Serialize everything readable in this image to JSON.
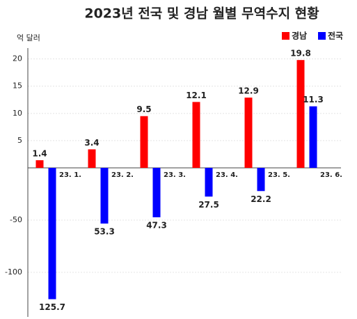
{
  "chart_data": {
    "type": "bar",
    "title": "2023년 전국 및 경남 월별 무역수지 현황",
    "y_label": "억 달러",
    "categories": [
      "23. 1.",
      "23. 2.",
      "23. 3.",
      "23. 4.",
      "23. 5.",
      "23. 6."
    ],
    "series": [
      {
        "name": "경남",
        "color": "#ff0000",
        "values": [
          1.4,
          3.4,
          9.5,
          12.1,
          12.9,
          19.8
        ]
      },
      {
        "name": "전국",
        "color": "#0000ff",
        "values": [
          -125.7,
          -53.3,
          -47.3,
          -27.5,
          -22.2,
          11.3
        ],
        "value_labels": [
          "125.7",
          "53.3",
          "47.3",
          "27.5",
          "22.2",
          "11.3"
        ]
      }
    ],
    "ylim_upper": [
      0,
      22
    ],
    "ylim_lower": [
      -140,
      0
    ],
    "yticks": [
      20,
      15,
      10,
      5,
      -50,
      -100
    ],
    "grid": true,
    "legend": "top-right"
  }
}
